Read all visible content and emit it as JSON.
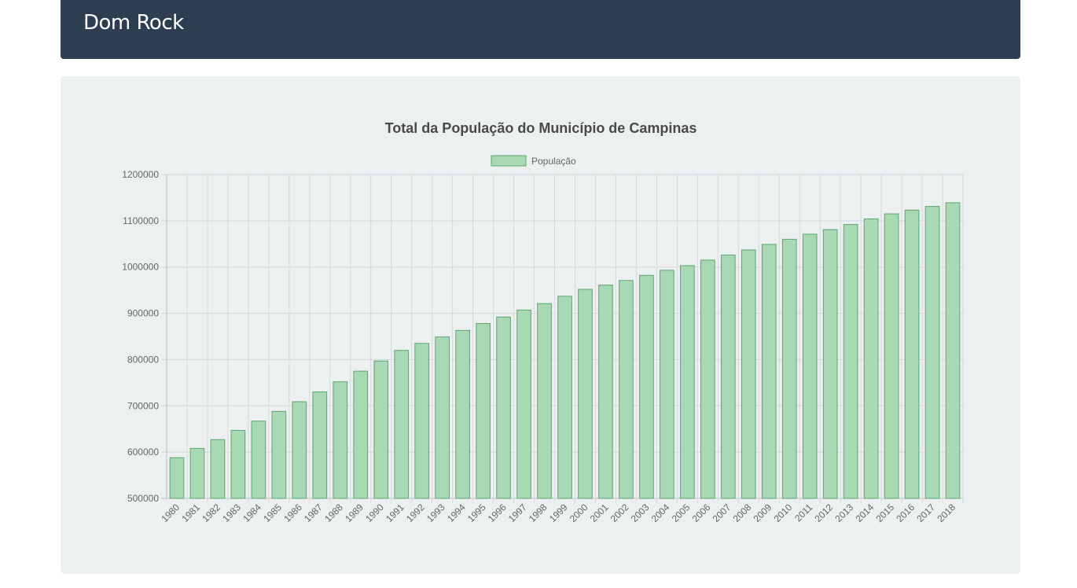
{
  "navbar": {
    "brand": "Dom Rock"
  },
  "chart_data": {
    "type": "bar",
    "title": "Total da População do Município de Campinas",
    "legend_position": "top",
    "grid": true,
    "ylim": [
      500000,
      1200000
    ],
    "yticks": [
      500000,
      600000,
      700000,
      800000,
      900000,
      1000000,
      1100000,
      1200000
    ],
    "categories": [
      "1980",
      "1981",
      "1982",
      "1983",
      "1984",
      "1985",
      "1986",
      "1987",
      "1988",
      "1989",
      "1990",
      "1991",
      "1992",
      "1993",
      "1994",
      "1995",
      "1996",
      "1997",
      "1998",
      "1999",
      "2000",
      "2001",
      "2002",
      "2003",
      "2004",
      "2005",
      "2006",
      "2007",
      "2008",
      "2009",
      "2010",
      "2011",
      "2012",
      "2013",
      "2014",
      "2015",
      "2016",
      "2017",
      "2018"
    ],
    "series": [
      {
        "name": "População",
        "color": "#a8d8b4",
        "border_color": "#5ba86e",
        "values": [
          588000,
          608000,
          627000,
          647000,
          667000,
          688000,
          709000,
          730000,
          752000,
          775000,
          797000,
          820000,
          835000,
          849000,
          863000,
          878000,
          892000,
          907000,
          921000,
          937000,
          952000,
          961000,
          971000,
          982000,
          993000,
          1003000,
          1015000,
          1026000,
          1037000,
          1049000,
          1060000,
          1071000,
          1081000,
          1092000,
          1104000,
          1115000,
          1123000,
          1131000,
          1139000
        ]
      }
    ]
  }
}
